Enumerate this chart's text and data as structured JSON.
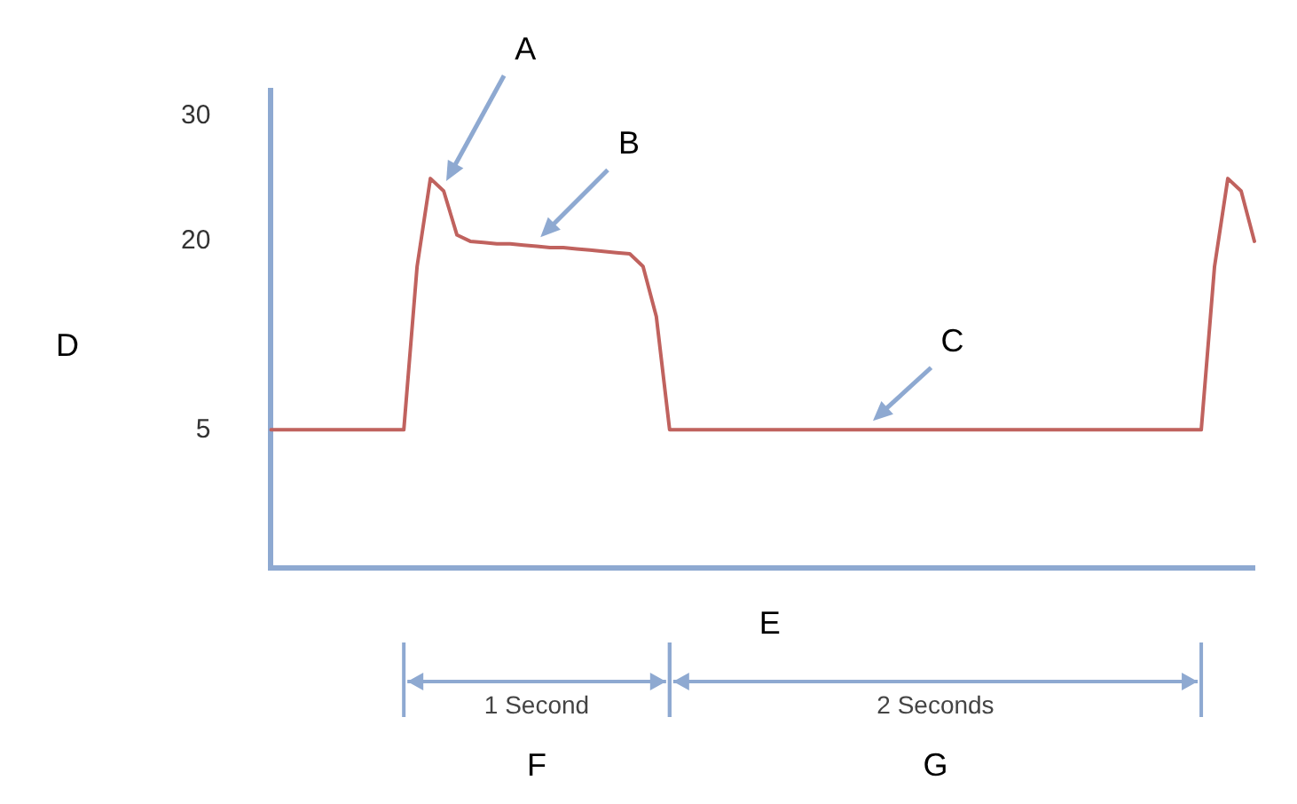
{
  "chart_data": {
    "type": "line",
    "categories": [
      null,
      null,
      null,
      null,
      null,
      null,
      null,
      null,
      null,
      null,
      null,
      null,
      null,
      null,
      null,
      null,
      null,
      null,
      null,
      null,
      null,
      null,
      null,
      null,
      null,
      null,
      null,
      null,
      null,
      null,
      null,
      null,
      null,
      null,
      null,
      null,
      null,
      null,
      null,
      null,
      null,
      null,
      null,
      null,
      null,
      null,
      null,
      null,
      null,
      null,
      null,
      null,
      null,
      null,
      null,
      null,
      null,
      null,
      null,
      null,
      null,
      null,
      null,
      null,
      null,
      null,
      null,
      null,
      null,
      null,
      null,
      null,
      null,
      null,
      null
    ],
    "series": [
      {
        "color": "#c0625e",
        "values": [
          5,
          5,
          5,
          5,
          5,
          5,
          5,
          5,
          5,
          5,
          5,
          18,
          25,
          24,
          20.5,
          20,
          19.9,
          19.8,
          19.8,
          19.7,
          19.6,
          19.5,
          19.5,
          19.4,
          19.3,
          19.2,
          19.1,
          19,
          18,
          14,
          5,
          5,
          5,
          5,
          5,
          5,
          5,
          5,
          5,
          5,
          5,
          5,
          5,
          5,
          5,
          5,
          5,
          5,
          5,
          5,
          5,
          5,
          5,
          5,
          5,
          5,
          5,
          5,
          5,
          5,
          5,
          5,
          5,
          5,
          5,
          5,
          5,
          5,
          5,
          5,
          5,
          18,
          25,
          24,
          20
        ]
      }
    ],
    "ylim": [
      -6,
      32
    ],
    "yticks": [
      5,
      20,
      30
    ],
    "ylabel": "D",
    "xlabel": "E",
    "tick_labels": "y",
    "grid": false,
    "legend": false,
    "marker": "none",
    "line_style": "solid",
    "annotations": [
      "A",
      "B",
      "C",
      "1 Second",
      "2 Seconds",
      "F",
      "G"
    ]
  }
}
